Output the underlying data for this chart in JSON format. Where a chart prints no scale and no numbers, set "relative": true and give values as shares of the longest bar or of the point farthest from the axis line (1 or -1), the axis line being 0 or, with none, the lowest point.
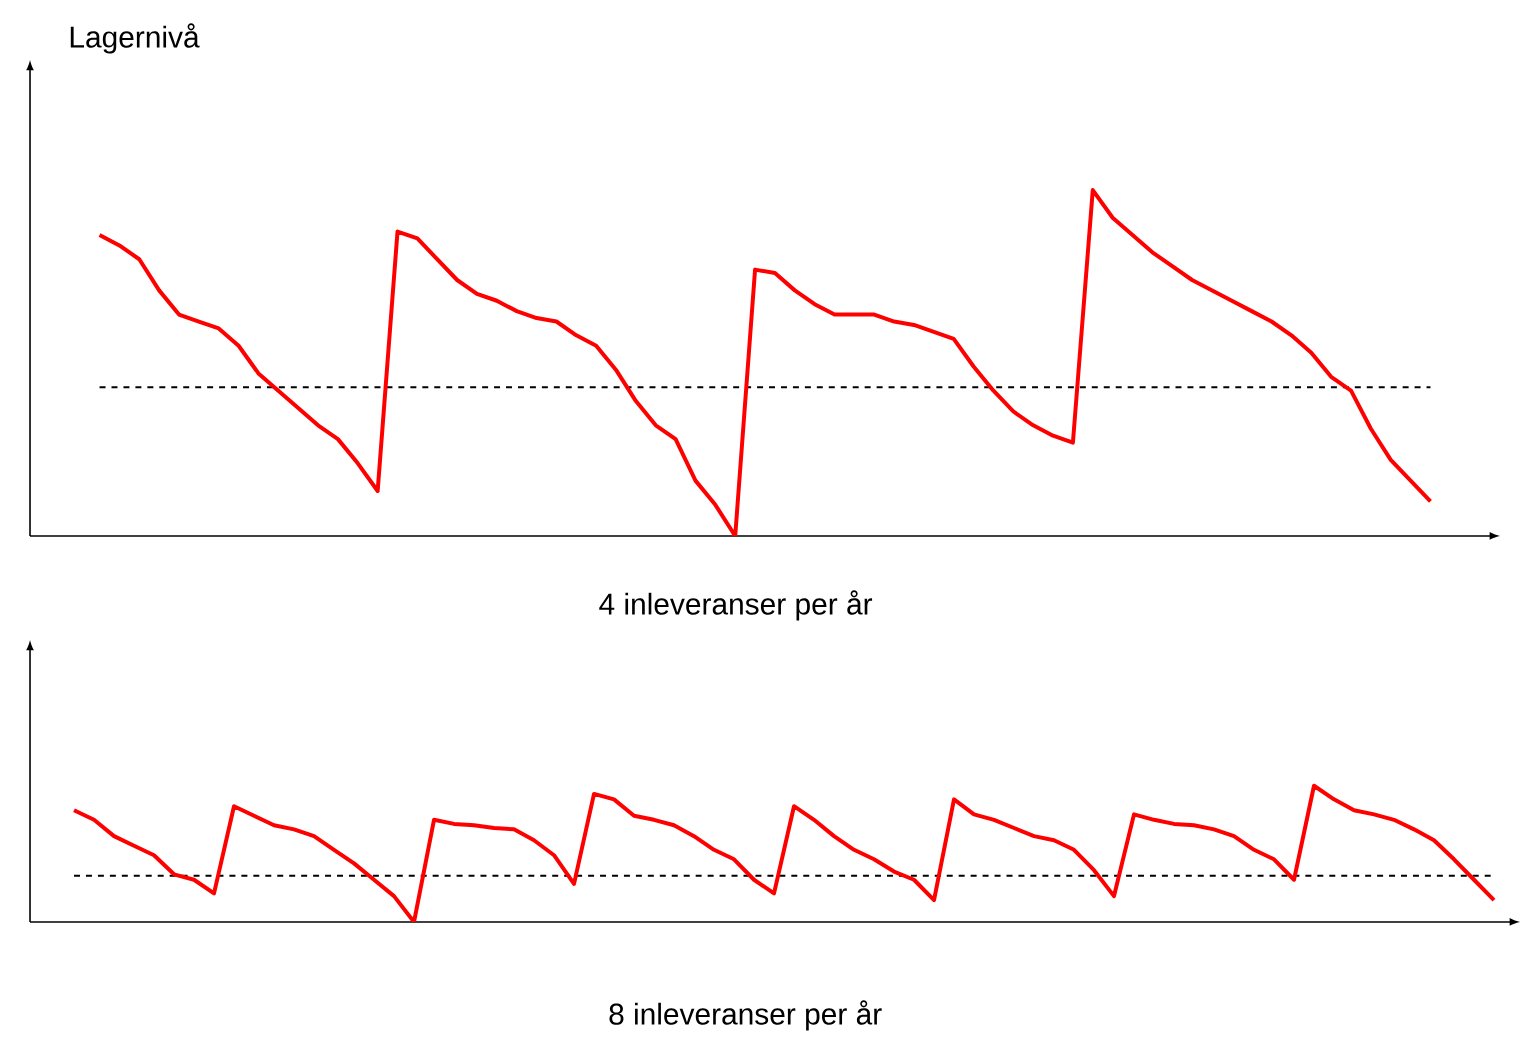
{
  "chart_data": [
    {
      "type": "line",
      "relative": true,
      "ylabel": "Lagernivå",
      "xlabel": "4 inleveranser per år",
      "categories": [
        null,
        null,
        null,
        null,
        null,
        null,
        null,
        null,
        null,
        null,
        null,
        null,
        null,
        null,
        null,
        null,
        null,
        null,
        null,
        null,
        null,
        null,
        null,
        null,
        null,
        null,
        null,
        null,
        null,
        null,
        null,
        null,
        null,
        null,
        null,
        null,
        null,
        null,
        null,
        null,
        null,
        null,
        null,
        null,
        null,
        null,
        null,
        null,
        null,
        null,
        null,
        null,
        null,
        null,
        null,
        null,
        null,
        null,
        null,
        null,
        null,
        null,
        null,
        null,
        null,
        null,
        null,
        null
      ],
      "series": [
        {
          "color": "#ff0000",
          "values": [
            0.87,
            0.84,
            0.8,
            0.71,
            0.64,
            0.62,
            0.6,
            0.55,
            0.47,
            0.42,
            0.37,
            0.32,
            0.28,
            0.21,
            0.13,
            0.88,
            0.86,
            0.8,
            0.74,
            0.7,
            0.68,
            0.65,
            0.63,
            0.62,
            0.58,
            0.55,
            0.48,
            0.39,
            0.32,
            0.28,
            0.16,
            0.09,
            0,
            0.77,
            0.76,
            0.71,
            0.67,
            0.64,
            0.64,
            0.64,
            0.62,
            0.61,
            0.59,
            0.57,
            0.49,
            0.42,
            0.36,
            0.32,
            0.29,
            0.27,
            1.0,
            0.92,
            0.87,
            0.82,
            0.78,
            0.74,
            0.71,
            0.68,
            0.65,
            0.62,
            0.58,
            0.53,
            0.46,
            0.42,
            0.31,
            0.22,
            0.16,
            0.1
          ]
        }
      ],
      "ref_lines": [
        {
          "axis": "y",
          "value": 0.43,
          "color": "#000000",
          "line_style": "dashed"
        }
      ]
    },
    {
      "type": "line",
      "relative": true,
      "xlabel": "8 inleveranser per år",
      "categories": [
        null,
        null,
        null,
        null,
        null,
        null,
        null,
        null,
        null,
        null,
        null,
        null,
        null,
        null,
        null,
        null,
        null,
        null,
        null,
        null,
        null,
        null,
        null,
        null,
        null,
        null,
        null,
        null,
        null,
        null,
        null,
        null,
        null,
        null,
        null,
        null,
        null,
        null,
        null,
        null,
        null,
        null,
        null,
        null,
        null,
        null,
        null,
        null,
        null,
        null,
        null,
        null,
        null,
        null,
        null,
        null,
        null,
        null,
        null,
        null,
        null,
        null,
        null,
        null,
        null,
        null,
        null,
        null,
        null,
        null,
        null,
        null
      ],
      "series": [
        {
          "color": "#ff0000",
          "values": [
            0.82,
            0.75,
            0.63,
            0.56,
            0.49,
            0.35,
            0.31,
            0.21,
            0.85,
            0.78,
            0.71,
            0.68,
            0.63,
            0.53,
            0.43,
            0.31,
            0.19,
            0,
            0.75,
            0.72,
            0.71,
            0.69,
            0.68,
            0.6,
            0.49,
            0.28,
            0.94,
            0.9,
            0.78,
            0.75,
            0.71,
            0.63,
            0.53,
            0.46,
            0.31,
            0.21,
            0.85,
            0.75,
            0.63,
            0.53,
            0.46,
            0.37,
            0.31,
            0.16,
            0.9,
            0.79,
            0.75,
            0.69,
            0.63,
            0.6,
            0.53,
            0.38,
            0.19,
            0.79,
            0.75,
            0.72,
            0.71,
            0.68,
            0.63,
            0.53,
            0.46,
            0.31,
            1.0,
            0.9,
            0.82,
            0.79,
            0.75,
            0.68,
            0.6,
            0.46,
            0.31,
            0.16
          ]
        }
      ],
      "ref_lines": [
        {
          "axis": "y",
          "value": 0.34,
          "color": "#000000",
          "line_style": "dashed"
        }
      ]
    }
  ]
}
